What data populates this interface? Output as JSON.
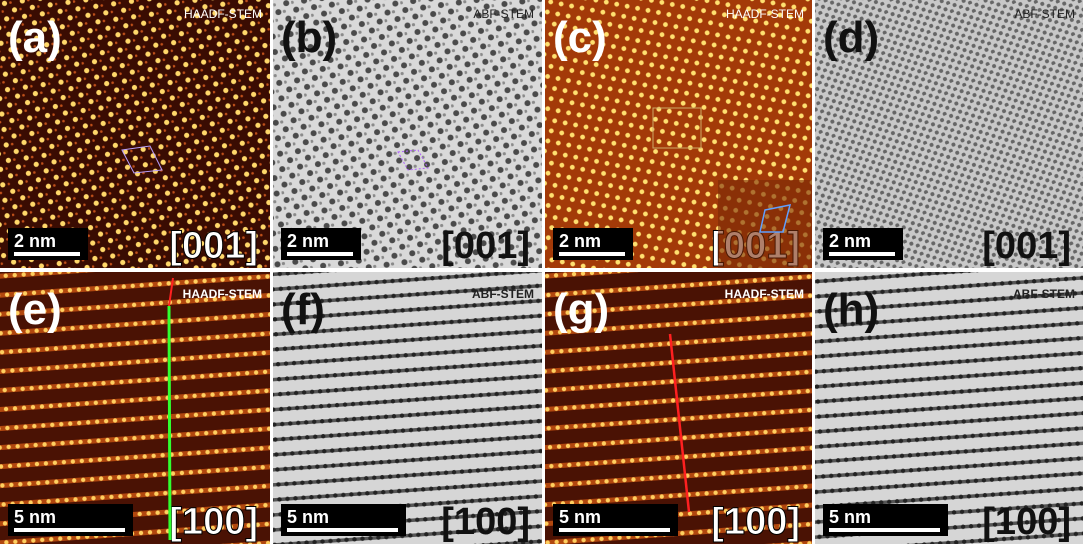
{
  "panels": [
    {
      "label": "(a)",
      "mode": "HAADF-STEM",
      "scale": "2 nm",
      "zone": "[001]"
    },
    {
      "label": "(b)",
      "mode": "ABF-STEM",
      "scale": "2 nm",
      "zone": "[001]"
    },
    {
      "label": "(c)",
      "mode": "HAADF-STEM",
      "scale": "2 nm",
      "zone": "[001]"
    },
    {
      "label": "(d)",
      "mode": "ABF-STEM",
      "scale": "2 nm",
      "zone": "[001]"
    },
    {
      "label": "(e)",
      "mode": "HAADF-STEM",
      "scale": "5 nm",
      "zone": "[100]"
    },
    {
      "label": "(f)",
      "mode": "ABF-STEM",
      "scale": "5 nm",
      "zone": "[100]"
    },
    {
      "label": "(g)",
      "mode": "HAADF-STEM",
      "scale": "5 nm",
      "zone": "[100]"
    },
    {
      "label": "(h)",
      "mode": "ABF-STEM",
      "scale": "5 nm",
      "zone": "[100]"
    }
  ]
}
